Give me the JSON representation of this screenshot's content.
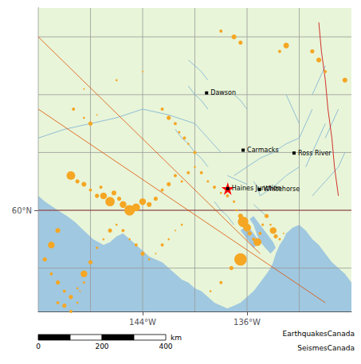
{
  "chart_data": {
    "type": "scatter",
    "xlim": [
      -152,
      -128
    ],
    "ylim": [
      56.5,
      67.0
    ],
    "xticks": [
      {
        "value": -144,
        "label": "144°W"
      },
      {
        "value": -136,
        "label": "136°W"
      }
    ],
    "yticks": [
      {
        "value": 60,
        "label": "60°N"
      }
    ],
    "series": [
      {
        "type": "polygon",
        "color": "#e8f5d8",
        "points": [
          [
            -152,
            56.5
          ],
          [
            -128,
            56.5
          ],
          [
            -128,
            67.0
          ],
          [
            -152,
            67.0
          ]
        ]
      },
      {
        "type": "polygon",
        "color": "#a0c8e0",
        "points": [
          [
            -152,
            56.5
          ],
          [
            -152,
            60.5
          ],
          [
            -151.5,
            60.3
          ],
          [
            -150.5,
            60.0
          ],
          [
            -149.8,
            59.8
          ],
          [
            -149.2,
            59.6
          ],
          [
            -148.5,
            59.3
          ],
          [
            -147.8,
            59.0
          ],
          [
            -147.0,
            58.8
          ],
          [
            -146.5,
            58.9
          ],
          [
            -146.0,
            59.1
          ],
          [
            -145.5,
            59.2
          ],
          [
            -145.0,
            59.0
          ],
          [
            -144.5,
            58.8
          ],
          [
            -144.0,
            58.6
          ],
          [
            -143.5,
            58.4
          ],
          [
            -143.0,
            58.3
          ],
          [
            -142.5,
            58.2
          ],
          [
            -142.0,
            58.0
          ],
          [
            -141.5,
            57.8
          ],
          [
            -141.0,
            57.6
          ],
          [
            -140.5,
            57.5
          ],
          [
            -140.0,
            57.3
          ],
          [
            -139.5,
            57.2
          ],
          [
            -139.0,
            57.0
          ],
          [
            -138.5,
            56.8
          ],
          [
            -138.0,
            56.7
          ],
          [
            -137.5,
            56.6
          ],
          [
            -137.0,
            56.7
          ],
          [
            -136.5,
            56.8
          ],
          [
            -136.0,
            57.0
          ],
          [
            -135.5,
            57.2
          ],
          [
            -135.0,
            57.5
          ],
          [
            -134.5,
            57.8
          ],
          [
            -134.2,
            58.0
          ],
          [
            -134.0,
            58.2
          ],
          [
            -133.8,
            58.5
          ],
          [
            -133.5,
            58.8
          ],
          [
            -133.2,
            59.0
          ],
          [
            -133.0,
            59.2
          ],
          [
            -132.5,
            59.4
          ],
          [
            -132.0,
            59.5
          ],
          [
            -131.5,
            59.3
          ],
          [
            -131.0,
            59.0
          ],
          [
            -130.5,
            58.8
          ],
          [
            -130.0,
            58.5
          ],
          [
            -129.5,
            58.2
          ],
          [
            -129.0,
            58.0
          ],
          [
            -128.5,
            57.8
          ],
          [
            -128,
            57.5
          ],
          [
            -128,
            56.5
          ],
          [
            -152,
            56.5
          ]
        ]
      },
      {
        "type": "polygon",
        "color": "#a0c8e0",
        "points": [
          [
            -135.5,
            59.8
          ],
          [
            -135.0,
            59.5
          ],
          [
            -134.5,
            59.2
          ],
          [
            -134.0,
            58.9
          ],
          [
            -133.8,
            58.7
          ],
          [
            -134.2,
            58.5
          ],
          [
            -134.8,
            58.8
          ],
          [
            -135.2,
            59.1
          ],
          [
            -135.5,
            59.5
          ],
          [
            -135.8,
            59.7
          ],
          [
            -135.5,
            59.8
          ]
        ]
      },
      {
        "type": "polygon",
        "color": "#a0c8e0",
        "points": [
          [
            -136.0,
            59.5
          ],
          [
            -135.5,
            59.2
          ],
          [
            -135.0,
            58.9
          ],
          [
            -135.5,
            58.7
          ],
          [
            -136.0,
            59.0
          ],
          [
            -136.5,
            59.3
          ],
          [
            -136.0,
            59.5
          ]
        ]
      },
      {
        "type": "line",
        "color": "#999999",
        "paths": [
          [
            [
              -152,
              56.5
            ],
            [
              -152,
              67.0
            ]
          ],
          [
            [
              -148,
              56.5
            ],
            [
              -148,
              67.0
            ]
          ],
          [
            [
              -144,
              56.5
            ],
            [
              -144,
              67.0
            ]
          ],
          [
            [
              -140,
              56.5
            ],
            [
              -140,
              67.0
            ]
          ],
          [
            [
              -136,
              56.5
            ],
            [
              -136,
              67.0
            ]
          ],
          [
            [
              -132,
              56.5
            ],
            [
              -132,
              67.0
            ]
          ],
          [
            [
              -152,
              58
            ],
            [
              -128,
              58
            ]
          ],
          [
            [
              -152,
              60
            ],
            [
              -128,
              60
            ]
          ],
          [
            [
              -152,
              62
            ],
            [
              -128,
              62
            ]
          ],
          [
            [
              -152,
              64
            ],
            [
              -128,
              64
            ]
          ],
          [
            [
              -152,
              66
            ],
            [
              -128,
              66
            ]
          ]
        ]
      },
      {
        "type": "line",
        "color": "#7ab0d4",
        "paths": [
          [
            [
              -152,
              62.5
            ],
            [
              -150,
              62.8
            ],
            [
              -148,
              63.0
            ],
            [
              -146,
              63.2
            ],
            [
              -144,
              63.5
            ],
            [
              -142,
              63.3
            ],
            [
              -140,
              63.0
            ],
            [
              -139,
              62.5
            ],
            [
              -138,
              62.0
            ]
          ],
          [
            [
              -132,
              62.5
            ],
            [
              -133,
              62.3
            ],
            [
              -134,
              62.0
            ],
            [
              -135,
              61.8
            ],
            [
              -136,
              61.5
            ],
            [
              -137,
              61.2
            ]
          ],
          [
            [
              -132,
              61.5
            ],
            [
              -133,
              61.2
            ],
            [
              -134,
              60.8
            ],
            [
              -135,
              60.5
            ]
          ],
          [
            [
              -139,
              63.5
            ],
            [
              -139.5,
              63.8
            ],
            [
              -140,
              64.0
            ],
            [
              -140.5,
              64.3
            ]
          ],
          [
            [
              -140,
              62.0
            ],
            [
              -140.5,
              62.3
            ],
            [
              -141,
              62.5
            ],
            [
              -141.5,
              62.8
            ]
          ],
          [
            [
              -139,
              61.5
            ],
            [
              -139.5,
              61.8
            ],
            [
              -140,
              62.0
            ]
          ],
          [
            [
              -136,
              60.9
            ],
            [
              -136.5,
              61.0
            ],
            [
              -137,
              61.1
            ],
            [
              -137.5,
              61.2
            ]
          ],
          [
            [
              -137,
              59.5
            ],
            [
              -137.5,
              59.8
            ],
            [
              -138,
              60.0
            ],
            [
              -138.5,
              60.3
            ]
          ],
          [
            [
              -130,
              65.0
            ],
            [
              -130.5,
              64.5
            ],
            [
              -131,
              64.0
            ]
          ],
          [
            [
              -131,
              63.5
            ],
            [
              -131.5,
              63.0
            ],
            [
              -132,
              62.5
            ]
          ],
          [
            [
              -128.5,
              62.0
            ],
            [
              -129,
              61.5
            ],
            [
              -130,
              61.0
            ],
            [
              -131,
              60.5
            ]
          ],
          [
            [
              -135.0,
              60.5
            ],
            [
              -135.2,
              60.8
            ],
            [
              -135.5,
              61.0
            ]
          ],
          [
            [
              -135.5,
              60.2
            ],
            [
              -135.0,
              60.0
            ],
            [
              -134.5,
              59.8
            ]
          ],
          [
            [
              -139,
              64.5
            ],
            [
              -139.5,
              64.8
            ],
            [
              -140,
              65.0
            ],
            [
              -140.5,
              65.2
            ]
          ],
          [
            [
              -136,
              63.5
            ],
            [
              -136.5,
              63.8
            ],
            [
              -137,
              64.0
            ]
          ],
          [
            [
              -132,
              63.0
            ],
            [
              -132.5,
              63.5
            ],
            [
              -133,
              64.0
            ]
          ],
          [
            [
              -130,
              63.0
            ],
            [
              -130.5,
              62.5
            ],
            [
              -131,
              62.0
            ],
            [
              -131.5,
              61.5
            ]
          ],
          [
            [
              -129,
              63.5
            ],
            [
              -129.5,
              63.0
            ],
            [
              -130,
              62.5
            ]
          ]
        ]
      },
      {
        "type": "line",
        "color": "#cc0000",
        "paths": [
          [
            [
              -130.5,
              66.5
            ],
            [
              -130.3,
              65.5
            ],
            [
              -130.0,
              64.5
            ],
            [
              -129.8,
              63.5
            ],
            [
              -129.5,
              62.5
            ],
            [
              -129.3,
              61.5
            ],
            [
              -129.0,
              60.5
            ]
          ]
        ]
      },
      {
        "type": "line",
        "color": "#8b1a1a",
        "paths": [
          [
            [
              -152,
              60.0
            ],
            [
              -128,
              60.0
            ]
          ]
        ]
      },
      {
        "type": "line",
        "color": "#e05000",
        "paths": [
          [
            [
              -152,
              66.0
            ],
            [
              -135,
              58.5
            ]
          ],
          [
            [
              -152,
              63.5
            ],
            [
              -130,
              56.8
            ]
          ]
        ]
      },
      {
        "type": "scatter",
        "marker": "circle",
        "color": "#f5a623",
        "x": [
          -149.3,
          -148.5,
          -148.0,
          -147.5,
          -138.0,
          -137.0,
          -136.5,
          -133.5,
          -133.0,
          -131.0,
          -130.5,
          -130.0,
          -128.5,
          -148.5,
          -146.0,
          -144.0,
          -142.5,
          -142.0,
          -141.5,
          -141.2,
          -140.8,
          -140.5,
          -140.0,
          -149.5,
          -149.0,
          -148.5,
          -148.0,
          -147.5,
          -147.2,
          -147.0,
          -146.5,
          -146.2,
          -145.8,
          -145.5,
          -145.0,
          -144.5,
          -144.0,
          -143.5,
          -143.0,
          -142.5,
          -142.0,
          -141.5,
          -141.0,
          -140.5,
          -140.0,
          -139.5,
          -139.0,
          -138.5,
          -138.0,
          -137.5,
          -137.0,
          -136.8,
          -136.5,
          -136.3,
          -136.0,
          -135.8,
          -135.5,
          -135.2,
          -135.0,
          -134.8,
          -134.5,
          -134.2,
          -134.0,
          -133.8,
          -133.5,
          -133.2,
          -136.5,
          -137.2,
          -138.0,
          -138.8,
          -150.5,
          -151.0,
          -151.5,
          -151.0,
          -150.5,
          -150.0,
          -149.5,
          -149.0,
          -148.5,
          -148.0,
          -147.5,
          -147.0,
          -146.5,
          -146.0,
          -145.5,
          -145.0,
          -144.5,
          -144.0,
          -143.5,
          -143.0,
          -142.5,
          -142.0,
          -141.5,
          -141.0,
          -150.5,
          -150.0,
          -149.5,
          -149.0,
          -148.8,
          -148.5
        ],
        "y": [
          63.5,
          63.2,
          63.0,
          63.3,
          66.2,
          66.0,
          65.8,
          65.5,
          65.7,
          65.5,
          65.2,
          64.8,
          64.5,
          64.2,
          64.5,
          64.8,
          63.5,
          63.2,
          63.0,
          62.7,
          62.5,
          62.3,
          62.0,
          61.2,
          61.0,
          60.9,
          60.7,
          60.5,
          60.8,
          60.5,
          60.3,
          60.6,
          60.4,
          60.2,
          60.0,
          60.1,
          60.3,
          60.2,
          60.4,
          60.7,
          60.9,
          61.2,
          61.0,
          61.3,
          61.5,
          61.3,
          61.0,
          60.8,
          60.6,
          60.5,
          60.3,
          60.0,
          59.8,
          59.6,
          59.4,
          59.2,
          59.0,
          58.9,
          59.2,
          59.5,
          59.8,
          59.5,
          59.3,
          59.1,
          59.0,
          59.2,
          58.3,
          58.0,
          57.5,
          57.2,
          59.3,
          58.8,
          58.3,
          57.8,
          57.5,
          57.2,
          57.0,
          57.3,
          57.8,
          58.2,
          58.7,
          59.0,
          59.3,
          59.5,
          59.3,
          59.0,
          58.8,
          58.5,
          58.3,
          58.5,
          58.8,
          59.0,
          59.3,
          59.5,
          56.8,
          56.7,
          56.5,
          56.8,
          57.2,
          57.5
        ],
        "magnitude": [
          5.5,
          5.2,
          5.8,
          5.0,
          5.5,
          6.0,
          5.8,
          5.5,
          6.2,
          5.8,
          6.0,
          5.5,
          6.0,
          5.0,
          5.2,
          5.0,
          5.5,
          5.8,
          5.5,
          5.3,
          5.5,
          5.2,
          5.5,
          7.0,
          5.8,
          6.0,
          5.5,
          5.8,
          5.5,
          6.5,
          7.2,
          6.0,
          5.8,
          6.5,
          7.5,
          6.8,
          6.5,
          6.0,
          5.8,
          5.5,
          5.8,
          5.5,
          5.3,
          5.5,
          5.2,
          5.5,
          5.3,
          5.5,
          5.2,
          5.5,
          5.3,
          5.2,
          6.0,
          7.5,
          6.8,
          5.8,
          5.5,
          6.8,
          5.5,
          5.3,
          5.8,
          5.2,
          6.5,
          5.8,
          5.3,
          5.0,
          8.0,
          5.8,
          5.5,
          5.2,
          6.0,
          6.5,
          5.8,
          5.5,
          5.8,
          5.5,
          5.8,
          5.2,
          6.5,
          5.8,
          5.3,
          5.2,
          5.8,
          5.2,
          5.5,
          5.2,
          5.5,
          5.8,
          5.2,
          5.0,
          5.5,
          5.2,
          5.0,
          5.2,
          5.5,
          5.8,
          5.5,
          5.2,
          5.0,
          5.3
        ]
      },
      {
        "type": "scatter",
        "marker": "star",
        "color": "#ff0000",
        "x": [
          -137.48
        ],
        "y": [
          60.75
        ]
      },
      {
        "type": "scatter",
        "marker": "square",
        "color": "#000000",
        "x": [
          -139.1,
          -136.3,
          -132.4,
          -137.48,
          -135.05
        ],
        "y": [
          64.06,
          62.08,
          61.98,
          60.75,
          60.72
        ],
        "names": [
          "Dawson",
          "Carmacks",
          "Ross River",
          "Haines Junction",
          "Whitehorse"
        ]
      }
    ],
    "scale_bar": {
      "breaks": [
        0,
        100,
        200,
        300,
        400
      ],
      "ticks": [
        0,
        200,
        400
      ],
      "unit": "km"
    },
    "annotations": [
      "EarthquakesCanada",
      "SeismesCanada"
    ]
  }
}
